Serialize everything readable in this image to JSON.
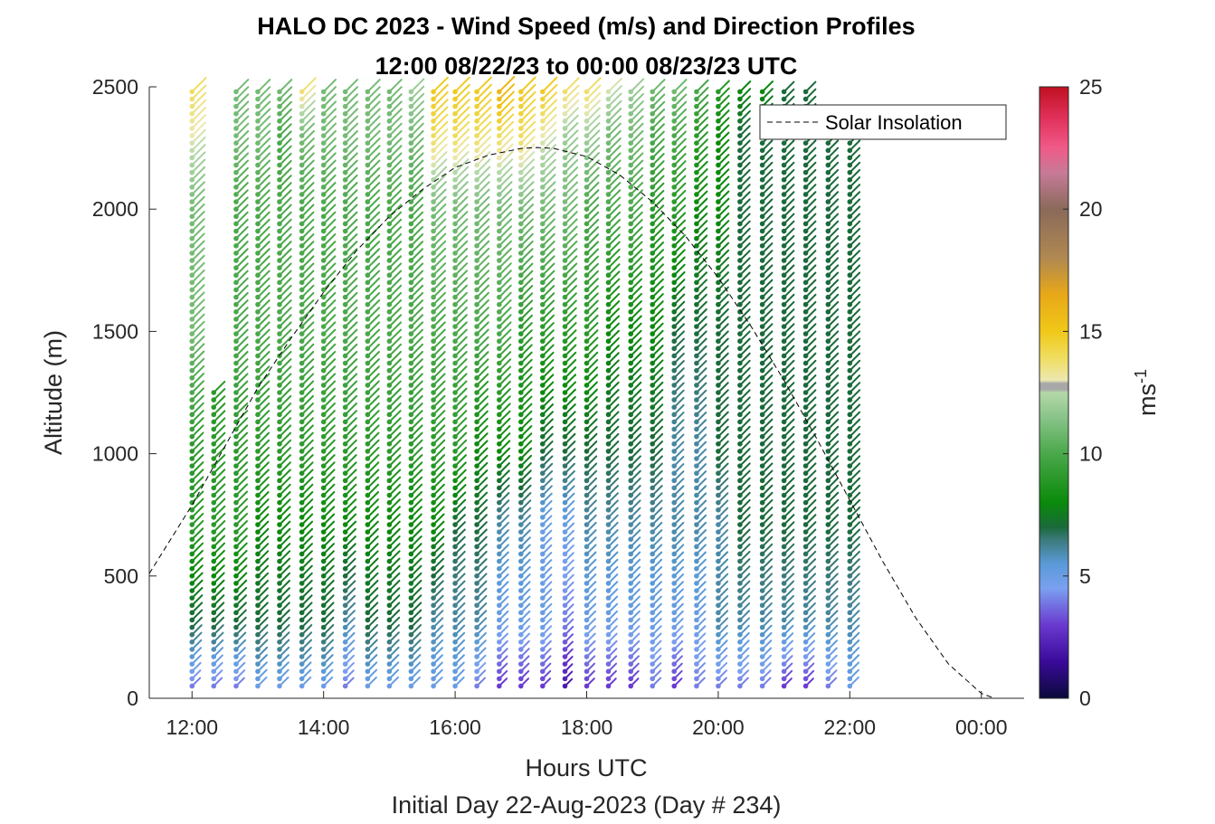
{
  "chart_data": {
    "type": "barb-profile",
    "title_line1": "HALO DC 2023 - Wind Speed (m/s) and Direction Profiles",
    "title_line2": "12:00 08/22/23 to 00:00 08/23/23  UTC",
    "xlabel": "Hours UTC",
    "subtitle": "Initial Day 22-Aug-2023 (Day # 234)",
    "ylabel": "Altitude (m)",
    "colorbar_label": "ms",
    "colorbar_label_exp": "-1",
    "xlim": [
      11.35,
      24.65
    ],
    "ylim": [
      0,
      2500
    ],
    "x_ticks": [
      12,
      14,
      16,
      18,
      20,
      22,
      24
    ],
    "x_tick_labels": [
      "12:00",
      "14:00",
      "16:00",
      "18:00",
      "20:00",
      "22:00",
      "00:00"
    ],
    "y_ticks": [
      0,
      500,
      1000,
      1500,
      2000,
      2500
    ],
    "y_tick_labels": [
      "0",
      "500",
      "1000",
      "1500",
      "2000",
      "2500"
    ],
    "cbar_ticks": [
      0,
      5,
      10,
      15,
      20,
      25
    ],
    "cbar_tick_labels": [
      "0",
      "5",
      "10",
      "15",
      "20",
      "25"
    ],
    "cbar_range": [
      0,
      25
    ],
    "legend": {
      "label": "Solar Insolation",
      "placement": "top-right",
      "style": "dashed",
      "color": "#000000"
    },
    "profile_times": [
      12.0,
      12.33,
      12.67,
      13.0,
      13.33,
      13.67,
      14.0,
      14.33,
      14.67,
      15.0,
      15.33,
      15.67,
      16.0,
      16.33,
      16.67,
      17.0,
      17.33,
      17.67,
      18.0,
      18.33,
      18.67,
      19.0,
      19.33,
      19.67,
      20.0,
      20.33,
      20.67,
      21.0,
      21.33,
      21.67,
      22.0
    ],
    "profile_top_altitude": [
      2500,
      1250,
      2500,
      2500,
      2500,
      2500,
      2500,
      2500,
      2500,
      2500,
      2500,
      2500,
      2500,
      2500,
      2500,
      2500,
      2500,
      2500,
      2500,
      2500,
      2500,
      2500,
      2500,
      2500,
      2500,
      2500,
      2500,
      2500,
      2500,
      2280,
      2300
    ],
    "speed_samples_altitude": [
      50,
      300,
      700,
      1000,
      1500,
      2000,
      2300,
      2500
    ],
    "speed_profiles_ms": [
      [
        4,
        7,
        9,
        9,
        11,
        11,
        13,
        14
      ],
      [
        4,
        7,
        9,
        9,
        9,
        9,
        9,
        9
      ],
      [
        4,
        7,
        9,
        9,
        10,
        10,
        11,
        11
      ],
      [
        5,
        7,
        8,
        9,
        10,
        10,
        11,
        11
      ],
      [
        5,
        7,
        8,
        9,
        10,
        10,
        10,
        11
      ],
      [
        5,
        7,
        8,
        9,
        10,
        10,
        11,
        14
      ],
      [
        5,
        7,
        8,
        9,
        10,
        10,
        11,
        11
      ],
      [
        4,
        6,
        8,
        9,
        10,
        10,
        11,
        11
      ],
      [
        5,
        7,
        8,
        9,
        10,
        10,
        11,
        11
      ],
      [
        5,
        7,
        8,
        9,
        10,
        10,
        11,
        11
      ],
      [
        5,
        7,
        8,
        9,
        10,
        10,
        11,
        12
      ],
      [
        5,
        6,
        8,
        9,
        10,
        11,
        14,
        15
      ],
      [
        5,
        6,
        7,
        9,
        10,
        11,
        14,
        15
      ],
      [
        4,
        6,
        7,
        8,
        10,
        11,
        14,
        15
      ],
      [
        3,
        5,
        6,
        8,
        10,
        11,
        14,
        16
      ],
      [
        3,
        5,
        6,
        8,
        9,
        11,
        14,
        15
      ],
      [
        3,
        5,
        5,
        7,
        9,
        11,
        13,
        15
      ],
      [
        2,
        4,
        5,
        7,
        9,
        11,
        12,
        14
      ],
      [
        3,
        5,
        6,
        7,
        9,
        10,
        12,
        14
      ],
      [
        3,
        5,
        6,
        7,
        8,
        10,
        11,
        13
      ],
      [
        3,
        5,
        6,
        7,
        8,
        10,
        11,
        12
      ],
      [
        4,
        5,
        6,
        7,
        8,
        9,
        10,
        11
      ],
      [
        3,
        5,
        6,
        6,
        7,
        9,
        10,
        11
      ],
      [
        4,
        5,
        6,
        6,
        7,
        8,
        9,
        10
      ],
      [
        4,
        6,
        6,
        7,
        7,
        8,
        8,
        9
      ],
      [
        4,
        6,
        7,
        7,
        7,
        7,
        7,
        8
      ],
      [
        4,
        6,
        7,
        7,
        7,
        7,
        7,
        8
      ],
      [
        3,
        6,
        7,
        7,
        7,
        7,
        7,
        7
      ],
      [
        3,
        6,
        7,
        7,
        7,
        7,
        7,
        7
      ],
      [
        4,
        6,
        7,
        7,
        7,
        7,
        7,
        7
      ],
      [
        5,
        6,
        7,
        7,
        7,
        7,
        7,
        7
      ]
    ],
    "barb_direction_deg": 315,
    "solar_insolation_curve": {
      "x": [
        11.35,
        12.0,
        12.5,
        13.0,
        13.5,
        14.0,
        14.5,
        15.0,
        15.5,
        16.0,
        16.5,
        17.0,
        17.25,
        17.5,
        18.0,
        18.5,
        19.0,
        19.5,
        20.0,
        20.5,
        21.0,
        21.5,
        22.0,
        22.5,
        23.0,
        23.5,
        24.0,
        24.2,
        24.65
      ],
      "y": [
        510,
        790,
        1030,
        1270,
        1470,
        1660,
        1830,
        1970,
        2080,
        2170,
        2220,
        2248,
        2252,
        2248,
        2215,
        2140,
        2030,
        1890,
        1720,
        1520,
        1300,
        1060,
        810,
        560,
        330,
        140,
        20,
        0,
        0
      ]
    }
  }
}
